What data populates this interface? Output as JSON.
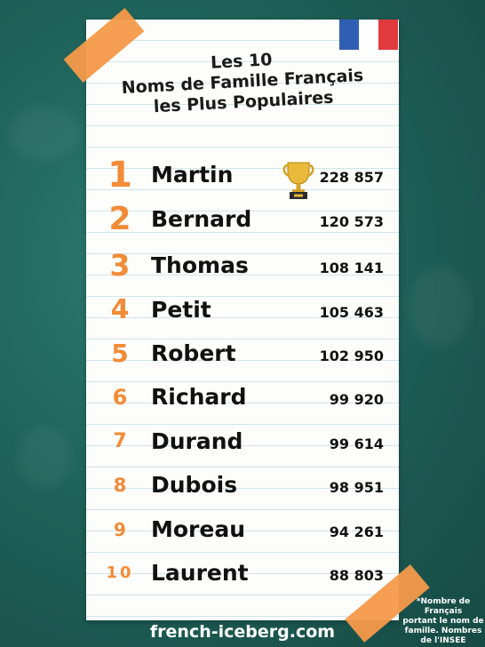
{
  "title": {
    "line1": "Les 10",
    "line2": "Noms de Famille Français",
    "line3": "les Plus Populaires"
  },
  "rows": [
    {
      "rank": "1",
      "name": "Martin",
      "count": "228 857"
    },
    {
      "rank": "2",
      "name": "Bernard",
      "count": "120 573"
    },
    {
      "rank": "3",
      "name": "Thomas",
      "count": "108 141"
    },
    {
      "rank": "4",
      "name": "Petit",
      "count": "105 463"
    },
    {
      "rank": "5",
      "name": "Robert",
      "count": "102 950"
    },
    {
      "rank": "6",
      "name": "Richard",
      "count": "99 920"
    },
    {
      "rank": "7",
      "name": "Durand",
      "count": "99 614"
    },
    {
      "rank": "8",
      "name": "Dubois",
      "count": "98 951"
    },
    {
      "rank": "9",
      "name": "Moreau",
      "count": "94 261"
    },
    {
      "rank": "10",
      "name": "Laurent",
      "count": "88 803"
    }
  ],
  "footnote": {
    "line1": "*Nombre de Français",
    "line2": "portant le nom de",
    "line3": "famille. Nombres",
    "line4": "de l'INSEE"
  },
  "website": "french-iceberg.com",
  "icons": {
    "trophy": "trophy-icon",
    "flag": "french-flag-icon"
  },
  "colors": {
    "background": "#1f6259",
    "rank": "#f28b36",
    "tape": "#f59a4a",
    "flag_blue": "#2f5fb3",
    "flag_red": "#e0393e"
  }
}
